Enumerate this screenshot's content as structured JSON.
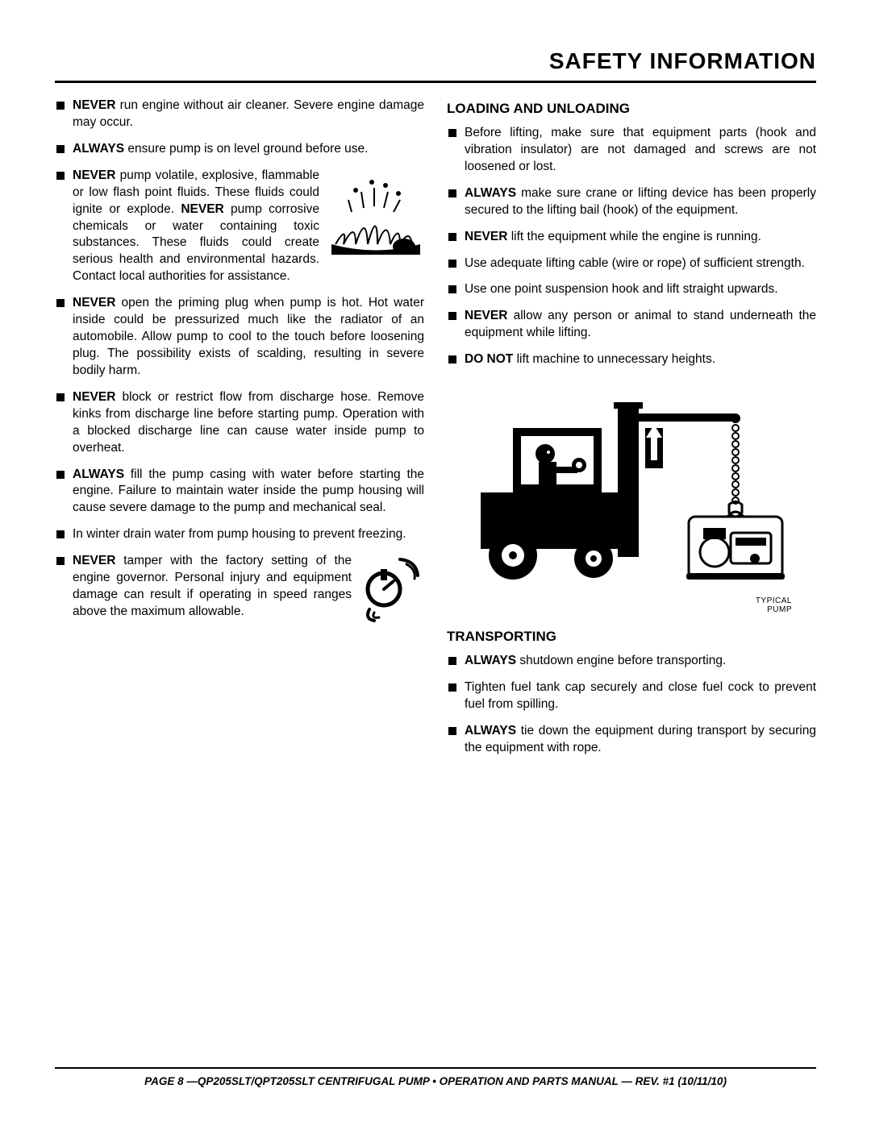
{
  "page_title": "SAFETY INFORMATION",
  "left": {
    "items": [
      {
        "keyword": "NEVER",
        "text": " run engine without air cleaner. Severe engine damage may occur."
      },
      {
        "keyword": "ALWAYS",
        "text": " ensure pump is on level ground before use."
      },
      {
        "keyword": "NEVER",
        "text_before_kw2": " pump volatile, explosive, flammable or low flash point fluids. These fluids could ignite or explode. ",
        "keyword2": "NEVER",
        "text_after": " pump corrosive chemicals or water containing toxic substances. These fluids could create serious health and environmental hazards. Contact local authorities for assistance.",
        "figure": "explosion"
      },
      {
        "keyword": "NEVER",
        "text": " open the priming plug when pump is hot. Hot water inside could be pressurized much like the radiator of an automobile. Allow pump to cool to the touch before loosening plug. The possibility exists of scalding, resulting in severe bodily harm."
      },
      {
        "keyword": "NEVER",
        "text": " block or restrict flow from discharge hose. Remove kinks from discharge line before starting pump. Operation with a blocked discharge line can cause water inside pump to overheat."
      },
      {
        "keyword": "ALWAYS",
        "text": " fill the pump casing with water before starting the engine. Failure to maintain water inside the pump housing will cause severe damage to the pump and mechanical seal."
      },
      {
        "text": "In winter drain water from pump housing to prevent freezing."
      },
      {
        "keyword": "NEVER",
        "text": " tamper with the factory setting of the engine governor. Personal injury and equipment damage can result if operating in speed ranges above the maximum allowable.",
        "figure": "governor"
      }
    ]
  },
  "right": {
    "loading_heading": "LOADING AND UNLOADING",
    "loading_items": [
      {
        "text": "Before lifting, make sure that equipment parts (hook and vibration insulator) are not damaged and screws are not loosened or lost."
      },
      {
        "keyword": "ALWAYS",
        "text": " make sure crane or lifting device has been properly secured to the lifting bail (hook) of the equipment."
      },
      {
        "keyword": "NEVER",
        "text": " lift the equipment while the engine is running."
      },
      {
        "text": "Use adequate lifting cable (wire or rope) of sufficient strength."
      },
      {
        "text": "Use one point suspension hook and lift straight upwards."
      },
      {
        "keyword": "NEVER",
        "text": " allow any person or animal to stand underneath the equipment while lifting."
      },
      {
        "keyword": "DO NOT",
        "text": " lift machine to unnecessary heights."
      }
    ],
    "forklift_caption_line1": "TYPICAL",
    "forklift_caption_line2": "PUMP",
    "lift_arrow_label": "LIFT",
    "transporting_heading": "TRANSPORTING",
    "transporting_items": [
      {
        "keyword": "ALWAYS",
        "text": " shutdown engine before transporting."
      },
      {
        "text": "Tighten fuel tank cap securely and close fuel cock to prevent fuel from spilling."
      },
      {
        "keyword": "ALWAYS",
        "text": " tie down the equipment during transport by securing the equipment with rope."
      }
    ]
  },
  "footer": "PAGE 8 —QP205SLT/QPT205SLT CENTRIFUGAL PUMP • OPERATION AND PARTS MANUAL — REV. #1 (10/11/10)",
  "colors": {
    "text": "#000000",
    "background": "#ffffff",
    "rule": "#000000"
  }
}
